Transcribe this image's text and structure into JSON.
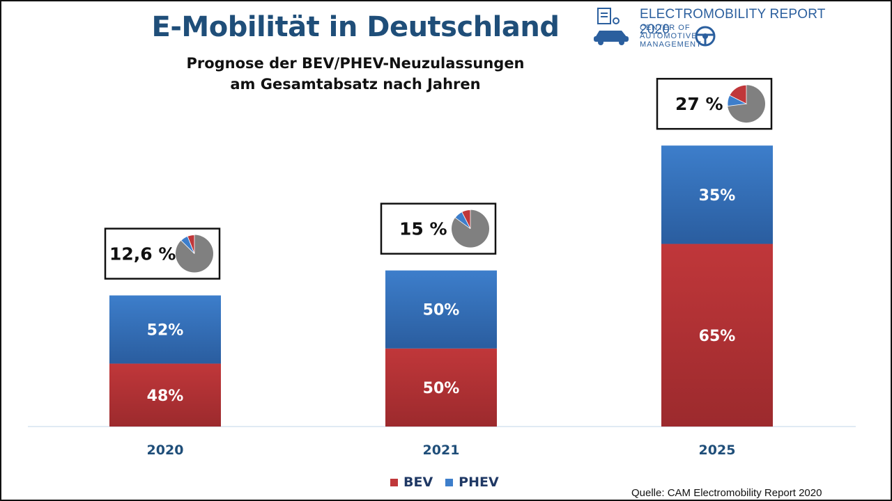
{
  "title": "E-Mobilität in Deutschland",
  "subtitle_line1": "Prognose der BEV/PHEV-Neuzulassungen",
  "subtitle_line2": "am Gesamtabsatz nach Jahren",
  "logo": {
    "report_title": "ELECTROMOBILITY REPORT 2020",
    "org_line1": "CENTER OF",
    "org_line2": "AUTOMOTIVE",
    "org_line3": "MANAGEMENT"
  },
  "source": "Quelle: CAM Electromobility Report 2020",
  "colors": {
    "bev": "#c0373a",
    "bev_dark": "#9c2a2d",
    "phev": "#3d7ecb",
    "phev_dark": "#2a5d9f",
    "pie_rest": "#808080",
    "axis_label": "#1f4e79"
  },
  "chart_data": {
    "type": "bar",
    "stacked": true,
    "categories": [
      "2020",
      "2021",
      "2025"
    ],
    "series": [
      {
        "name": "BEV",
        "values": [
          48,
          50,
          65
        ],
        "labels": [
          "48%",
          "50%",
          "65%"
        ]
      },
      {
        "name": "PHEV",
        "values": [
          52,
          50,
          35
        ],
        "labels": [
          "52%",
          "50%",
          "35%"
        ]
      }
    ],
    "ev_share_total": [
      12.6,
      15,
      27
    ],
    "ev_share_labels": [
      "12,6 %",
      "15 %",
      "27 %"
    ],
    "legend": [
      "BEV",
      "PHEV"
    ],
    "legend_position": "bottom"
  }
}
